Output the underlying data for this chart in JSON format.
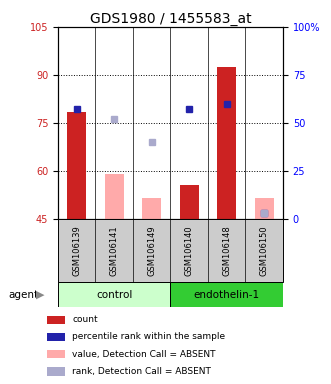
{
  "title": "GDS1980 / 1455583_at",
  "samples": [
    "GSM106139",
    "GSM106141",
    "GSM106149",
    "GSM106140",
    "GSM106148",
    "GSM106150"
  ],
  "ylim_left": [
    45,
    105
  ],
  "ylim_right": [
    0,
    100
  ],
  "yticks_left": [
    45,
    60,
    75,
    90,
    105
  ],
  "yticks_right": [
    0,
    25,
    50,
    75,
    100
  ],
  "yticklabels_right": [
    "0",
    "25",
    "50",
    "75",
    "100%"
  ],
  "red_bars": [
    78.5,
    null,
    null,
    55.5,
    92.5,
    null
  ],
  "blue_squares_pct": [
    57.0,
    null,
    null,
    57.0,
    60.0,
    3.0
  ],
  "pink_bars": [
    null,
    59.0,
    51.5,
    null,
    null,
    51.5
  ],
  "lightblue_squares_pct": [
    null,
    52.0,
    40.0,
    null,
    null,
    3.0
  ],
  "red_bar_color": "#cc2222",
  "blue_square_color": "#2222aa",
  "pink_bar_color": "#ffaaaa",
  "lightblue_square_color": "#aaaacc",
  "group_bg_control": "#ccffcc",
  "group_bg_endothelin": "#33cc33",
  "group_label_control": "control",
  "group_label_endothelin": "endothelin-1",
  "agent_label": "agent",
  "legend_items": [
    {
      "label": "count",
      "color": "#cc2222"
    },
    {
      "label": "percentile rank within the sample",
      "color": "#2222aa"
    },
    {
      "label": "value, Detection Call = ABSENT",
      "color": "#ffaaaa"
    },
    {
      "label": "rank, Detection Call = ABSENT",
      "color": "#aaaacc"
    }
  ],
  "bar_width": 0.5,
  "grid_levels": [
    90,
    75,
    60
  ],
  "title_fontsize": 10,
  "tick_fontsize": 7,
  "sample_fontsize": 6,
  "label_fontsize": 7.5,
  "legend_fontsize": 6.5
}
